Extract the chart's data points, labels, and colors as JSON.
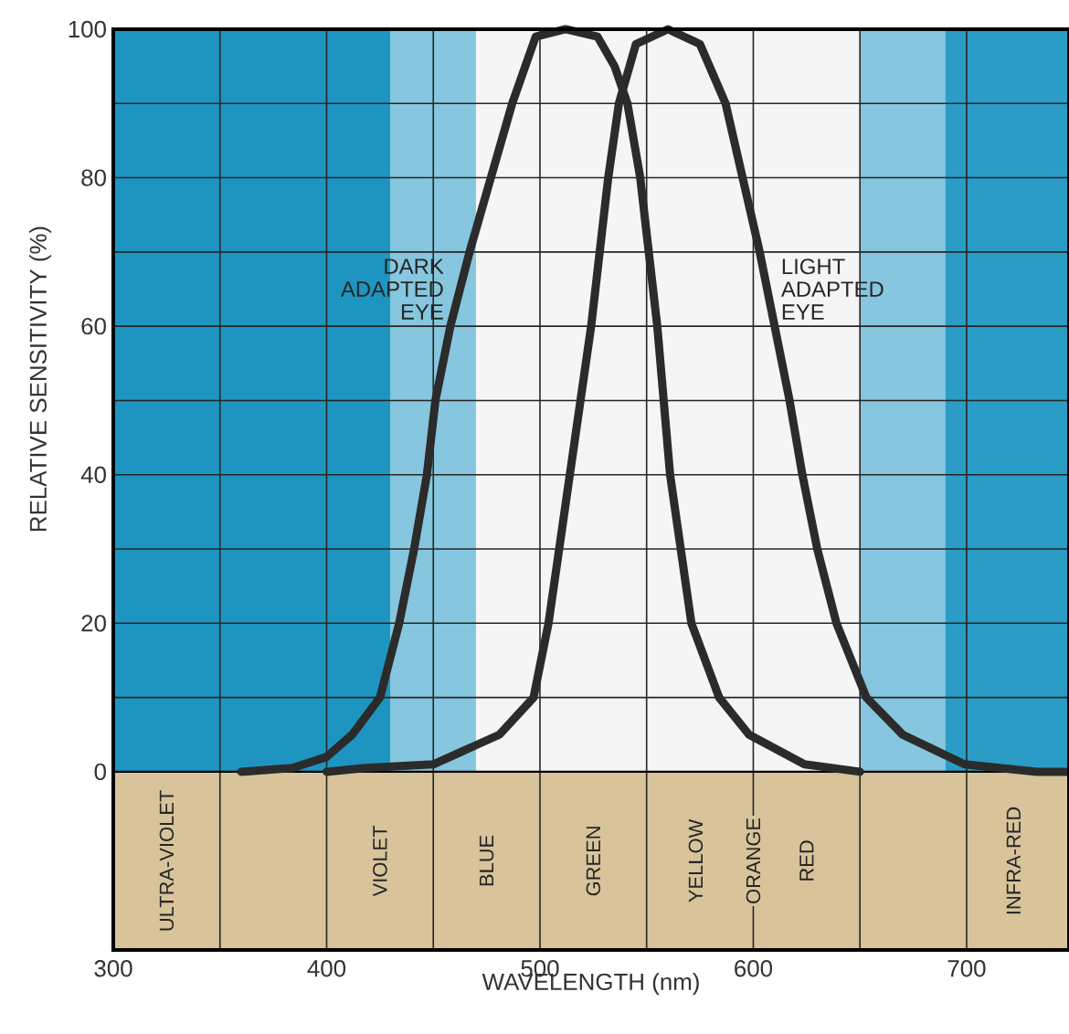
{
  "chart_data": {
    "type": "line",
    "xlabel": "WAVELENGTH (nm)",
    "ylabel": "RELATIVE SENSITIVITY (%)",
    "xlim": [
      300,
      748
    ],
    "ylim": [
      -24,
      100
    ],
    "xticks": [
      300,
      400,
      500,
      600,
      700
    ],
    "yticks": [
      0,
      20,
      40,
      60,
      80,
      100
    ],
    "grid": true,
    "legend": false,
    "marker": "none",
    "line_style": "solid",
    "series": [
      {
        "name": "DARK ADAPTED EYE",
        "color": "#2b2b2b",
        "x": [
          360,
          384,
          400,
          412,
          425,
          434,
          441,
          447,
          451,
          458,
          467,
          477,
          487,
          498,
          512,
          527,
          535,
          541,
          547,
          551,
          555,
          558,
          561,
          566,
          571,
          584,
          598,
          624,
          650
        ],
        "values": [
          0,
          0.5,
          2,
          5,
          10,
          20,
          30,
          40,
          50,
          60,
          70,
          80,
          90,
          99,
          100,
          99,
          95,
          90,
          80,
          70,
          60,
          50,
          40,
          30,
          20,
          10,
          5,
          1,
          0
        ]
      },
      {
        "name": "LIGHT ADAPTED EYE",
        "color": "#2b2b2b",
        "x": [
          400,
          418,
          450,
          481,
          497,
          504,
          509,
          514,
          519,
          524,
          528,
          532,
          537,
          545,
          560,
          575,
          587,
          595,
          603,
          610,
          617,
          623,
          630,
          639,
          653,
          670,
          699,
          733,
          748
        ],
        "values": [
          0,
          0.5,
          1,
          5,
          10,
          20,
          30,
          40,
          50,
          60,
          70,
          80,
          90,
          98,
          100,
          98,
          90,
          80,
          70,
          60,
          50,
          40,
          30,
          20,
          10,
          5,
          1,
          0,
          0
        ]
      }
    ],
    "bands": [
      {
        "axis": "x",
        "from": 300,
        "to": 430,
        "color": "#1e95c0"
      },
      {
        "axis": "x",
        "from": 430,
        "to": 470,
        "color": "#86c6de"
      },
      {
        "axis": "x",
        "from": 650,
        "to": 690,
        "color": "#86c6de"
      },
      {
        "axis": "x",
        "from": 690,
        "to": 748,
        "color": "#2a9cc6"
      },
      {
        "axis": "y",
        "from": -24,
        "to": 0,
        "color": "#d8c39a"
      }
    ],
    "annotations": [
      "ULTRA-VIOLET",
      "VIOLET",
      "BLUE",
      "GREEN",
      "YELLOW",
      "ORANGE",
      "RED",
      "INFRA-RED"
    ]
  }
}
